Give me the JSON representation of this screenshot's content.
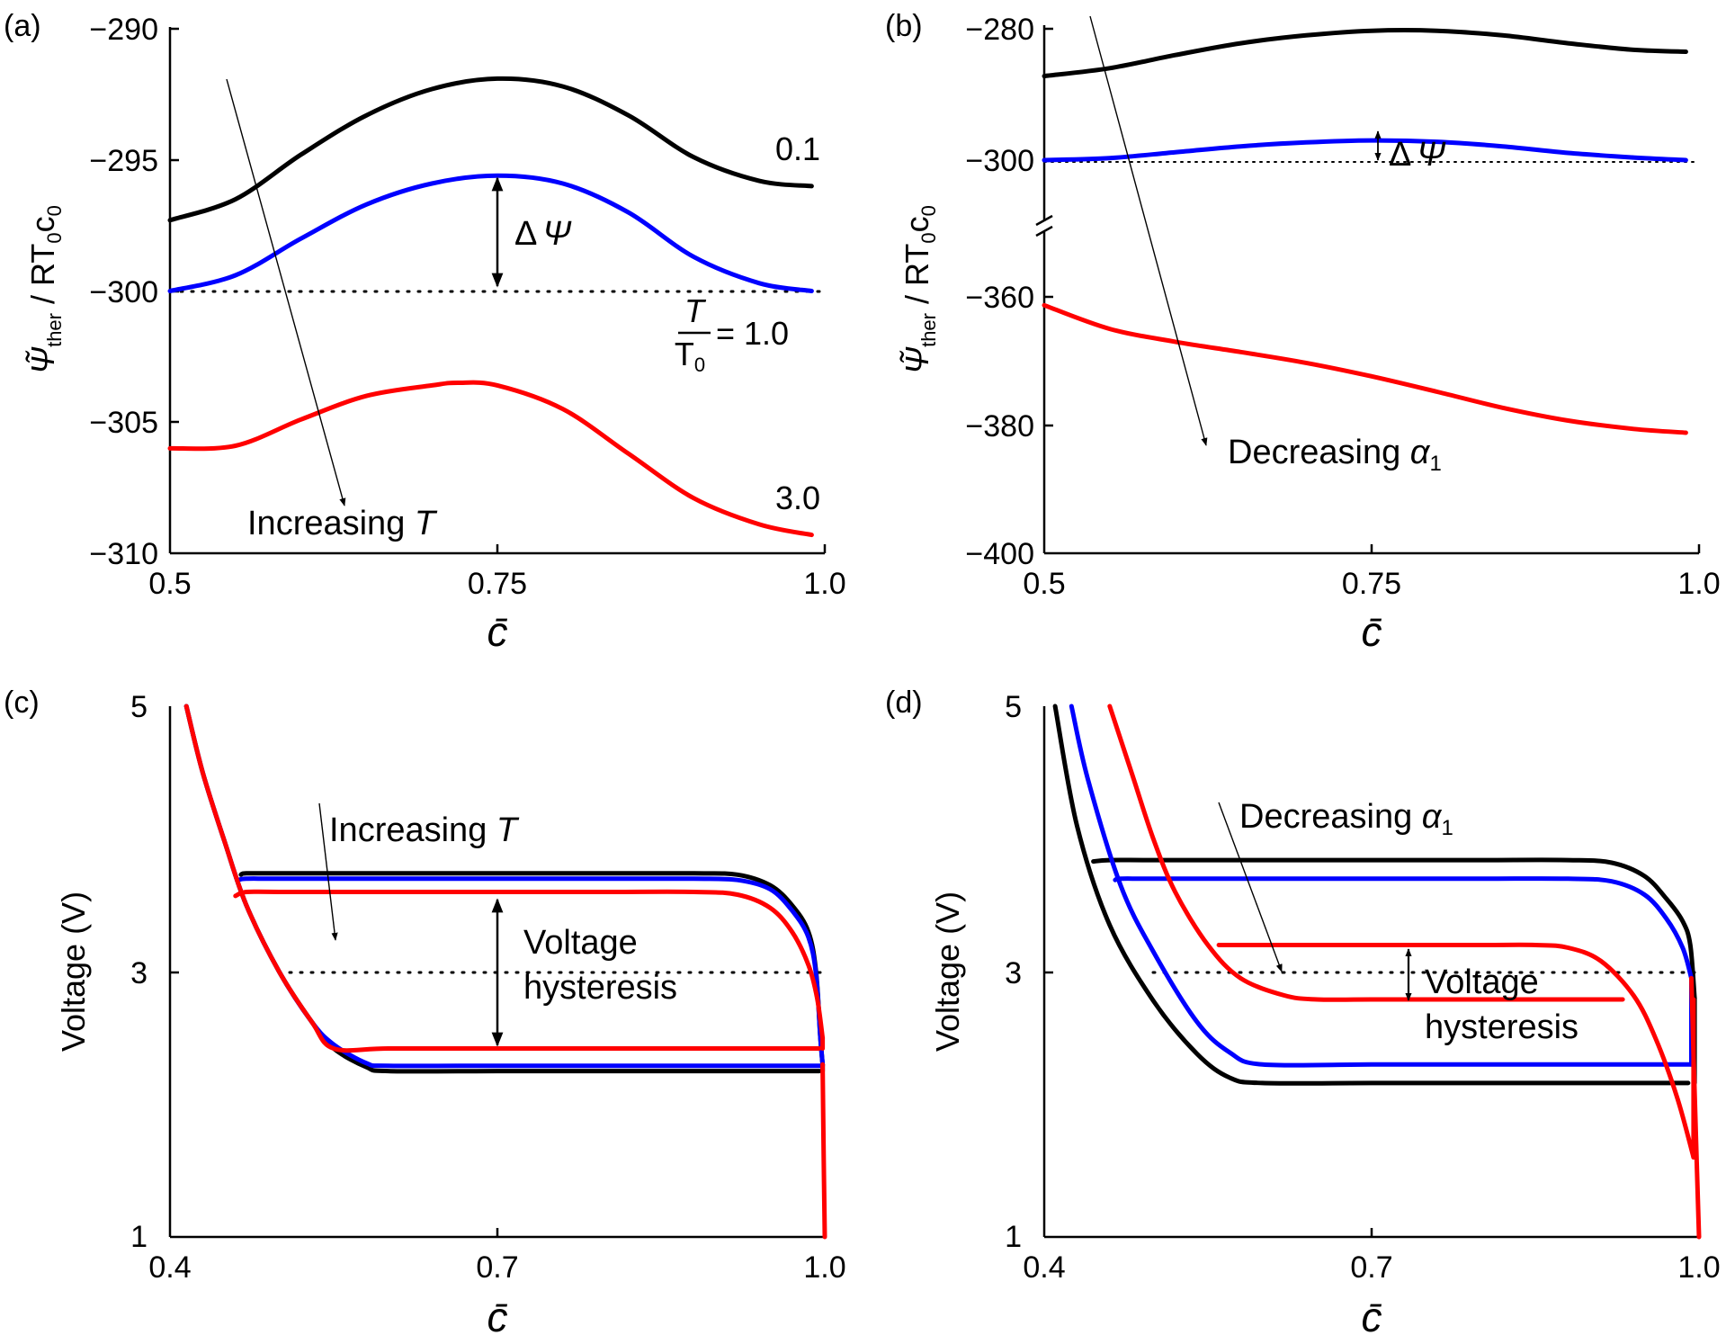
{
  "chart_data": [
    {
      "panel": "(a)",
      "type": "line",
      "xlabel": "c̄",
      "ylabel": {
        "main": "Ψ̃",
        "sub": "ther",
        "rest": " / RT",
        "sub0": "0",
        "c": "c",
        "sub1": "0"
      },
      "xlim": [
        0.5,
        1.0
      ],
      "ylim": [
        -310,
        -290
      ],
      "xticks": [
        0.5,
        0.75,
        1.0
      ],
      "xtick_labels": [
        "0.5",
        "0.75",
        "1.0"
      ],
      "yticks": [
        -290,
        -295,
        -300,
        -305,
        -310
      ],
      "ytick_labels": [
        "−290",
        "−295",
        "−300",
        "−305",
        "−310"
      ],
      "series": [
        {
          "name": "0.1",
          "color": "#000000",
          "x": [
            0.5,
            0.55,
            0.6,
            0.65,
            0.7,
            0.75,
            0.8,
            0.85,
            0.9,
            0.95,
            0.99
          ],
          "y": [
            -297.3,
            -296.5,
            -294.8,
            -293.3,
            -292.3,
            -291.9,
            -292.2,
            -293.3,
            -294.9,
            -295.8,
            -296.0
          ]
        },
        {
          "name": "1.0",
          "color": "#0000ff",
          "x": [
            0.5,
            0.55,
            0.6,
            0.65,
            0.7,
            0.75,
            0.8,
            0.85,
            0.9,
            0.95,
            0.99
          ],
          "y": [
            -300.0,
            -299.4,
            -298.0,
            -296.7,
            -295.9,
            -295.6,
            -295.9,
            -297.0,
            -298.7,
            -299.7,
            -300.0
          ]
        },
        {
          "name": "3.0",
          "color": "#ff0000",
          "x": [
            0.5,
            0.55,
            0.6,
            0.65,
            0.7,
            0.72,
            0.75,
            0.8,
            0.85,
            0.9,
            0.95,
            0.99
          ],
          "y": [
            -306.0,
            -305.9,
            -304.9,
            -304.0,
            -303.6,
            -303.5,
            -303.6,
            -304.5,
            -306.2,
            -307.9,
            -308.9,
            -309.3
          ]
        }
      ],
      "annotations": {
        "label_top": "0.1",
        "label_bottom": "3.0",
        "label_mid_num": "T",
        "label_mid_den": "T",
        "label_mid_den_sub": "0",
        "label_mid_value": "= 1.0",
        "delta_psi_symbol": "Δ",
        "delta_psi_letter": "Ψ",
        "arrow_text": "Increasing",
        "arrow_var": "T",
        "reference_line_y": -300
      }
    },
    {
      "panel": "(b)",
      "type": "line",
      "xlabel": "c̄",
      "ylabel": {
        "main": "Ψ̃",
        "sub": "ther",
        "rest": " / RT",
        "sub0": "0",
        "c": "c",
        "sub1": "0"
      },
      "xlim": [
        0.5,
        1.0
      ],
      "y_axis_broken": true,
      "upper_range": [
        -300,
        -280
      ],
      "lower_range": [
        -400,
        -360
      ],
      "xticks": [
        0.5,
        0.75,
        1.0
      ],
      "xtick_labels": [
        "0.5",
        "0.75",
        "1.0"
      ],
      "yticks": [
        -280,
        -300,
        -360,
        -380,
        -400
      ],
      "ytick_labels": [
        "−280",
        "−300",
        "−360",
        "−380",
        "−400"
      ],
      "series": [
        {
          "name": "black",
          "color": "#000000",
          "x": [
            0.5,
            0.55,
            0.6,
            0.65,
            0.7,
            0.75,
            0.8,
            0.85,
            0.9,
            0.95,
            0.99
          ],
          "y": [
            -287.2,
            -286.0,
            -284.0,
            -282.2,
            -281.0,
            -280.3,
            -280.3,
            -281.0,
            -282.2,
            -283.2,
            -283.5
          ]
        },
        {
          "name": "blue",
          "color": "#0000ff",
          "x": [
            0.5,
            0.55,
            0.6,
            0.65,
            0.7,
            0.75,
            0.8,
            0.85,
            0.9,
            0.95,
            0.99
          ],
          "y": [
            -300.0,
            -299.7,
            -298.8,
            -297.9,
            -297.3,
            -297.0,
            -297.2,
            -297.9,
            -298.9,
            -299.6,
            -300.0
          ]
        },
        {
          "name": "red",
          "color": "#ff0000",
          "x": [
            0.5,
            0.55,
            0.6,
            0.65,
            0.7,
            0.75,
            0.8,
            0.85,
            0.9,
            0.95,
            0.99
          ],
          "y": [
            -361.3,
            -365.0,
            -367.0,
            -368.6,
            -370.3,
            -372.4,
            -374.8,
            -377.3,
            -379.3,
            -380.6,
            -381.2
          ]
        }
      ],
      "annotations": {
        "delta_psi_symbol": "Δ",
        "delta_psi_letter": "Ψ",
        "arrow_text": "Decreasing",
        "arrow_var": "α",
        "arrow_var_sub": "1",
        "reference_line_y": -300
      }
    },
    {
      "panel": "(c)",
      "type": "line",
      "xlabel": "c̄",
      "ylabel": "Voltage (V)",
      "xlim": [
        0.4,
        1.0
      ],
      "ylim": [
        1,
        5
      ],
      "xticks": [
        0.4,
        0.7,
        1.0
      ],
      "xtick_labels": [
        "0.4",
        "0.7",
        "1.0"
      ],
      "yticks": [
        1,
        3,
        5
      ],
      "ytick_labels": [
        "1",
        "3",
        "5"
      ],
      "series": [
        {
          "name": "black",
          "color": "#000000",
          "charge": {
            "x": [
              0.465,
              0.47,
              0.5,
              0.6,
              0.7,
              0.8,
              0.88,
              0.92,
              0.95,
              0.97,
              0.985,
              0.992,
              0.996,
              0.998
            ],
            "y": [
              3.73,
              3.74,
              3.74,
              3.74,
              3.74,
              3.74,
              3.74,
              3.73,
              3.65,
              3.5,
              3.3,
              3.0,
              2.5,
              2.3
            ]
          },
          "discharge": {
            "x": [
              0.415,
              0.43,
              0.45,
              0.47,
              0.5,
              0.53,
              0.55,
              0.58,
              0.6,
              0.7,
              0.8,
              0.9,
              0.995
            ],
            "y": [
              5.0,
              4.5,
              3.98,
              3.5,
              3.0,
              2.62,
              2.42,
              2.28,
              2.25,
              2.25,
              2.25,
              2.25,
              2.25
            ]
          }
        },
        {
          "name": "blue",
          "color": "#0000ff",
          "charge": {
            "x": [
              0.463,
              0.47,
              0.5,
              0.6,
              0.7,
              0.8,
              0.88,
              0.92,
              0.95,
              0.97,
              0.985,
              0.992,
              0.996,
              0.998
            ],
            "y": [
              3.69,
              3.7,
              3.7,
              3.7,
              3.7,
              3.7,
              3.7,
              3.69,
              3.62,
              3.46,
              3.26,
              2.98,
              2.5,
              2.3
            ]
          },
          "discharge": {
            "x": [
              0.415,
              0.43,
              0.45,
              0.47,
              0.5,
              0.53,
              0.55,
              0.58,
              0.6,
              0.7,
              0.8,
              0.9,
              0.997
            ],
            "y": [
              5.0,
              4.5,
              3.98,
              3.5,
              3.0,
              2.62,
              2.45,
              2.31,
              2.29,
              2.29,
              2.29,
              2.29,
              2.29
            ]
          }
        },
        {
          "name": "red",
          "color": "#ff0000",
          "charge": {
            "x": [
              0.46,
              0.47,
              0.5,
              0.6,
              0.7,
              0.8,
              0.88,
              0.92,
              0.95,
              0.97,
              0.985,
              0.993,
              0.998
            ],
            "y": [
              3.57,
              3.6,
              3.6,
              3.6,
              3.6,
              3.6,
              3.6,
              3.58,
              3.48,
              3.3,
              3.05,
              2.8,
              2.5
            ]
          },
          "discharge": {
            "x": [
              0.415,
              0.43,
              0.45,
              0.47,
              0.5,
              0.53,
              0.55,
              0.6,
              0.7,
              0.8,
              0.9,
              0.995
            ],
            "y": [
              5.0,
              4.5,
              3.98,
              3.5,
              3.0,
              2.62,
              2.42,
              2.42,
              2.42,
              2.42,
              2.42,
              2.42
            ]
          }
        }
      ],
      "drop_curve": {
        "x": [
          0.998,
          0.999,
          1.0
        ],
        "y": [
          2.3,
          1.6,
          1.0
        ]
      },
      "annotations": {
        "arrow_text": "Increasing",
        "arrow_var": "T",
        "hysteresis_line1": "Voltage",
        "hysteresis_line2": "hysteresis",
        "reference_line_y": 3.0
      }
    },
    {
      "panel": "(d)",
      "type": "line",
      "xlabel": "c̄",
      "ylabel": "Voltage (V)",
      "xlim": [
        0.4,
        1.0
      ],
      "ylim": [
        1,
        5
      ],
      "xticks": [
        0.4,
        0.7,
        1.0
      ],
      "xtick_labels": [
        "0.4",
        "0.7",
        "1.0"
      ],
      "yticks": [
        1,
        3,
        5
      ],
      "ytick_labels": [
        "1",
        "3",
        "5"
      ],
      "series": [
        {
          "name": "black",
          "color": "#000000",
          "charge": {
            "x": [
              0.445,
              0.46,
              0.5,
              0.6,
              0.7,
              0.8,
              0.88,
              0.92,
              0.95,
              0.97,
              0.985,
              0.992,
              0.996
            ],
            "y": [
              3.83,
              3.84,
              3.84,
              3.84,
              3.84,
              3.84,
              3.84,
              3.82,
              3.72,
              3.55,
              3.38,
              3.2,
              2.8
            ]
          },
          "discharge": {
            "x": [
              0.41,
              0.43,
              0.46,
              0.5,
              0.54,
              0.57,
              0.6,
              0.7,
              0.8,
              0.9,
              0.99
            ],
            "y": [
              5.0,
              4.1,
              3.35,
              2.78,
              2.38,
              2.2,
              2.16,
              2.16,
              2.16,
              2.16,
              2.16
            ]
          }
        },
        {
          "name": "blue",
          "color": "#0000ff",
          "charge": {
            "x": [
              0.465,
              0.47,
              0.5,
              0.6,
              0.7,
              0.8,
              0.88,
              0.92,
              0.95,
              0.97,
              0.985,
              0.993
            ],
            "y": [
              3.69,
              3.7,
              3.7,
              3.7,
              3.7,
              3.7,
              3.7,
              3.68,
              3.58,
              3.4,
              3.18,
              2.95
            ]
          },
          "discharge": {
            "x": [
              0.425,
              0.44,
              0.47,
              0.5,
              0.54,
              0.57,
              0.6,
              0.7,
              0.8,
              0.9,
              0.993
            ],
            "y": [
              5.0,
              4.45,
              3.65,
              3.15,
              2.62,
              2.39,
              2.3,
              2.3,
              2.3,
              2.3,
              2.3
            ]
          }
        },
        {
          "name": "red",
          "color": "#ff0000",
          "charge": {
            "x": [
              0.56,
              0.58,
              0.6,
              0.7,
              0.8,
              0.85,
              0.88,
              0.91,
              0.94,
              0.96,
              0.98,
              0.995
            ],
            "y": [
              3.2,
              3.2,
              3.2,
              3.2,
              3.2,
              3.2,
              3.18,
              3.08,
              2.82,
              2.5,
              2.05,
              1.6
            ]
          },
          "discharge": {
            "x": [
              0.46,
              0.48,
              0.5,
              0.52,
              0.55,
              0.58,
              0.62,
              0.65,
              0.7,
              0.8,
              0.9,
              0.93
            ],
            "y": [
              5.0,
              4.5,
              4.0,
              3.6,
              3.2,
              2.95,
              2.82,
              2.79,
              2.79,
              2.79,
              2.79,
              2.79
            ]
          }
        }
      ],
      "drop_curve": {
        "x": [
          0.993,
          0.997,
          1.0
        ],
        "y": [
          2.95,
          1.8,
          1.0
        ]
      },
      "annotations": {
        "arrow_text": "Decreasing",
        "arrow_var": "α",
        "arrow_var_sub": "1",
        "hysteresis_line1": "Voltage",
        "hysteresis_line2": "hysteresis",
        "reference_line_y": 3.0
      }
    }
  ]
}
